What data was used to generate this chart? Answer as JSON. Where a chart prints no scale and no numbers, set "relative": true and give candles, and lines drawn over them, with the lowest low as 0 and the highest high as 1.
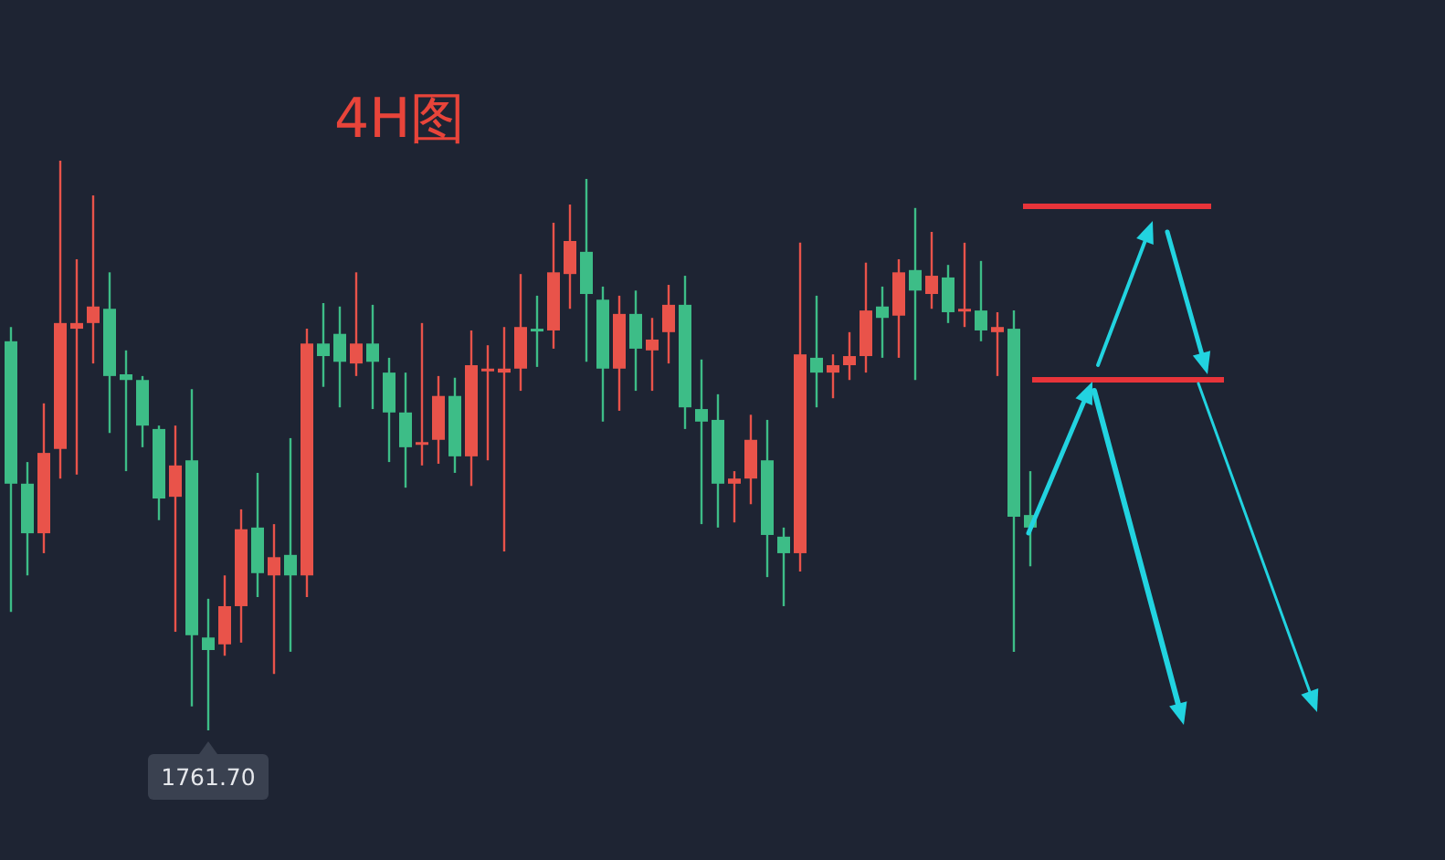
{
  "chart_data": {
    "type": "candlestick",
    "title": "4H图",
    "relative": true,
    "categories": [
      null,
      null,
      null,
      null,
      null,
      null,
      null,
      null,
      null,
      null,
      null,
      null,
      null,
      null,
      null,
      null,
      null,
      null,
      null,
      null,
      null,
      null,
      null,
      null,
      null,
      null,
      null,
      null,
      null,
      null,
      null,
      null,
      null,
      null,
      null,
      null,
      null,
      null,
      null,
      null,
      null,
      null,
      null,
      null,
      null,
      null,
      null,
      null,
      null,
      null,
      null,
      null,
      null,
      null,
      null,
      null,
      null,
      null,
      null,
      null,
      null,
      null,
      null
    ],
    "ohlc": [
      [
        0.683,
        0.708,
        0.208,
        0.433
      ],
      [
        0.433,
        0.471,
        0.272,
        0.346
      ],
      [
        0.346,
        0.574,
        0.311,
        0.487
      ],
      [
        0.494,
        1,
        0.442,
        0.715
      ],
      [
        0.705,
        0.827,
        0.449,
        0.715
      ],
      [
        0.715,
        0.939,
        0.644,
        0.744
      ],
      [
        0.74,
        0.804,
        0.522,
        0.622
      ],
      [
        0.625,
        0.667,
        0.455,
        0.615
      ],
      [
        0.615,
        0.622,
        0.497,
        0.535
      ],
      [
        0.529,
        0.535,
        0.369,
        0.407
      ],
      [
        0.41,
        0.535,
        0.173,
        0.465
      ],
      [
        0.474,
        0.599,
        0.042,
        0.167
      ],
      [
        0.163,
        0.231,
        0,
        0.141
      ],
      [
        0.151,
        0.272,
        0.131,
        0.218
      ],
      [
        0.218,
        0.388,
        0.154,
        0.353
      ],
      [
        0.356,
        0.452,
        0.234,
        0.276
      ],
      [
        0.272,
        0.362,
        0.099,
        0.304
      ],
      [
        0.308,
        0.513,
        0.138,
        0.272
      ],
      [
        0.272,
        0.705,
        0.234,
        0.679
      ],
      [
        0.679,
        0.75,
        0.603,
        0.657
      ],
      [
        0.696,
        0.744,
        0.567,
        0.647
      ],
      [
        0.644,
        0.804,
        0.622,
        0.679
      ],
      [
        0.679,
        0.747,
        0.564,
        0.647
      ],
      [
        0.628,
        0.654,
        0.471,
        0.558
      ],
      [
        0.558,
        0.628,
        0.426,
        0.497
      ],
      [
        0.503,
        0.715,
        0.465,
        0.506
      ],
      [
        0.51,
        0.622,
        0.468,
        0.587
      ],
      [
        0.587,
        0.619,
        0.452,
        0.481
      ],
      [
        0.481,
        0.702,
        0.429,
        0.641
      ],
      [
        0.631,
        0.676,
        0.474,
        0.635
      ],
      [
        0.628,
        0.708,
        0.314,
        0.635
      ],
      [
        0.635,
        0.801,
        0.596,
        0.708
      ],
      [
        0.705,
        0.763,
        0.638,
        0.702
      ],
      [
        0.702,
        0.891,
        0.67,
        0.804
      ],
      [
        0.801,
        0.923,
        0.74,
        0.859
      ],
      [
        0.84,
        0.968,
        0.647,
        0.766
      ],
      [
        0.756,
        0.779,
        0.542,
        0.635
      ],
      [
        0.635,
        0.763,
        0.561,
        0.731
      ],
      [
        0.731,
        0.772,
        0.596,
        0.67
      ],
      [
        0.667,
        0.724,
        0.596,
        0.686
      ],
      [
        0.699,
        0.782,
        0.644,
        0.747
      ],
      [
        0.747,
        0.798,
        0.529,
        0.567
      ],
      [
        0.564,
        0.651,
        0.362,
        0.542
      ],
      [
        0.545,
        0.59,
        0.356,
        0.433
      ],
      [
        0.433,
        0.455,
        0.365,
        0.442
      ],
      [
        0.442,
        0.554,
        0.397,
        0.51
      ],
      [
        0.474,
        0.545,
        0.269,
        0.343
      ],
      [
        0.34,
        0.356,
        0.218,
        0.311
      ],
      [
        0.311,
        0.856,
        0.279,
        0.66
      ],
      [
        0.654,
        0.763,
        0.567,
        0.628
      ],
      [
        0.628,
        0.66,
        0.583,
        0.641
      ],
      [
        0.641,
        0.699,
        0.615,
        0.657
      ],
      [
        0.657,
        0.821,
        0.628,
        0.737
      ],
      [
        0.744,
        0.779,
        0.654,
        0.724
      ],
      [
        0.728,
        0.827,
        0.654,
        0.804
      ],
      [
        0.808,
        0.917,
        0.615,
        0.772
      ],
      [
        0.766,
        0.875,
        0.74,
        0.798
      ],
      [
        0.795,
        0.817,
        0.715,
        0.734
      ],
      [
        0.737,
        0.856,
        0.708,
        0.74
      ],
      [
        0.737,
        0.824,
        0.683,
        0.702
      ],
      [
        0.699,
        0.734,
        0.622,
        0.708
      ],
      [
        0.705,
        0.737,
        0.138,
        0.375
      ],
      [
        0.378,
        0.455,
        0.288,
        0.356
      ]
    ],
    "colors": [
      "#3dbd87",
      "#3dbd87",
      "#e9534a",
      "#e9534a",
      "#e9534a",
      "#e9534a",
      "#3dbd87",
      "#3dbd87",
      "#3dbd87",
      "#3dbd87",
      "#e9534a",
      "#3dbd87",
      "#3dbd87",
      "#e9534a",
      "#e9534a",
      "#3dbd87",
      "#e9534a",
      "#3dbd87",
      "#e9534a",
      "#3dbd87",
      "#3dbd87",
      "#e9534a",
      "#3dbd87",
      "#3dbd87",
      "#3dbd87",
      "#e9534a",
      "#e9534a",
      "#3dbd87",
      "#e9534a",
      "#e9534a",
      "#e9534a",
      "#e9534a",
      "#3dbd87",
      "#e9534a",
      "#e9534a",
      "#3dbd87",
      "#3dbd87",
      "#e9534a",
      "#3dbd87",
      "#e9534a",
      "#e9534a",
      "#3dbd87",
      "#3dbd87",
      "#3dbd87",
      "#e9534a",
      "#e9534a",
      "#3dbd87",
      "#3dbd87",
      "#e9534a",
      "#3dbd87",
      "#e9534a",
      "#e9534a",
      "#e9534a",
      "#3dbd87",
      "#e9534a",
      "#3dbd87",
      "#e9534a",
      "#3dbd87",
      "#e9534a",
      "#3dbd87",
      "#e9534a",
      "#3dbd87",
      "#3dbd87"
    ],
    "annotations": [
      {
        "text": "1761.70",
        "y": 0
      }
    ]
  }
}
